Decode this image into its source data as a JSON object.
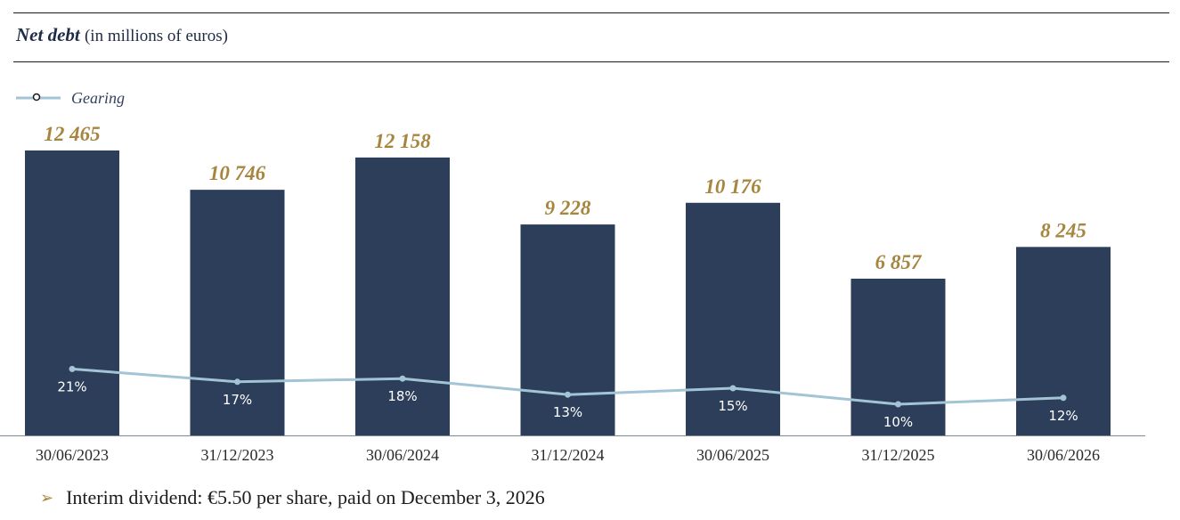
{
  "header": {
    "title": "Net debt",
    "subtitle": "(in millions of euros)"
  },
  "colors": {
    "bar": "#2c3e5a",
    "bar_label": "#a8853f",
    "line": "#a3c4d4",
    "marker": "#a3c4d4",
    "gearing_label": "#ffffff",
    "axis": "#7f8a99",
    "tick_label": "#2a2a2a"
  },
  "chart_data": {
    "type": "bar",
    "categories": [
      "30/06/2023",
      "31/12/2023",
      "30/06/2024",
      "31/12/2024",
      "30/06/2025",
      "31/12/2025",
      "30/06/2026"
    ],
    "series": [
      {
        "type": "bar",
        "values": [
          12465,
          10746,
          12158,
          9228,
          10176,
          6857,
          8245
        ],
        "labels": [
          "12 465",
          "10 746",
          "12 158",
          "9 228",
          "10 176",
          "6 857",
          "8 245"
        ]
      },
      {
        "name": "Gearing",
        "type": "line",
        "axis": "secondary",
        "values": [
          21,
          17,
          18,
          13,
          15,
          10,
          12
        ],
        "labels": [
          "21%",
          "17%",
          "18%",
          "13%",
          "15%",
          "10%",
          "12%"
        ]
      }
    ],
    "ylim": [
      0,
      12500
    ],
    "y2lim": [
      0,
      100
    ],
    "grid": false,
    "legend": "top-left"
  },
  "footnote": {
    "text": "Interim dividend: €5.50 per share, paid on December 3, 2026"
  }
}
